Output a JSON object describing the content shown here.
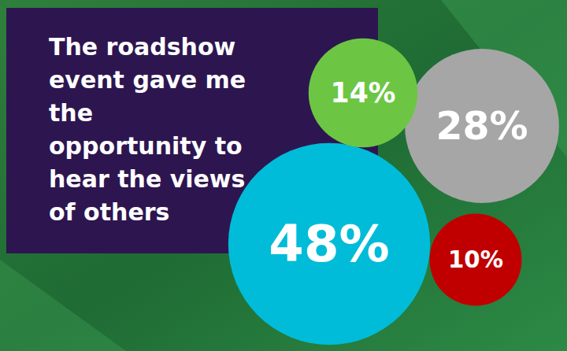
{
  "chart_data": {
    "type": "bubble",
    "title": "The roadshow event gave me the opportunity to hear the views of others",
    "values": [
      48,
      14,
      28,
      10
    ],
    "value_labels": [
      "48%",
      "14%",
      "28%",
      "10%"
    ],
    "colors": [
      "#00bcd8",
      "#6cc644",
      "#a6a6a6",
      "#c00000"
    ],
    "data_labels": true
  }
}
